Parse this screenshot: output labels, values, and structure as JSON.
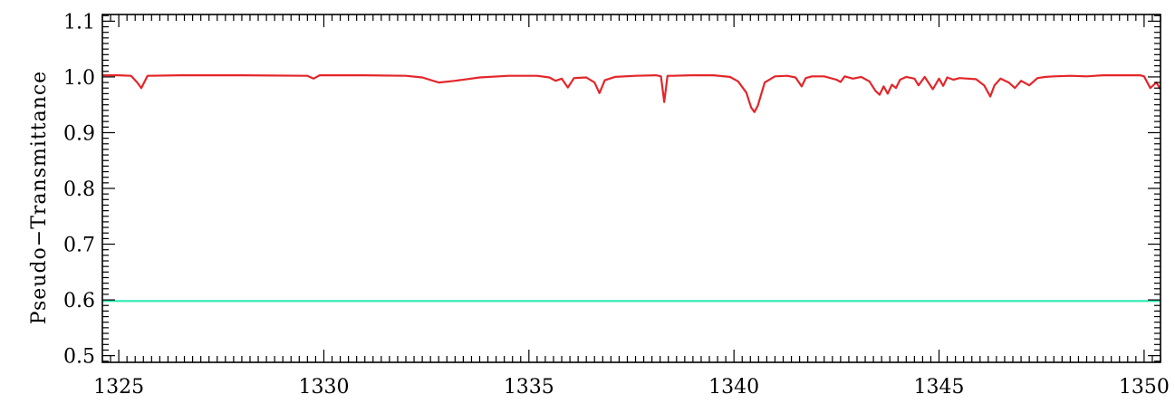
{
  "chart_data": {
    "type": "line",
    "title": "",
    "xlabel": "",
    "ylabel": "Pseudo−Transmittance",
    "xlim": [
      1324.6,
      1350.4
    ],
    "ylim": [
      0.488,
      1.112
    ],
    "x_ticks": [
      1325,
      1330,
      1335,
      1340,
      1345,
      1350
    ],
    "x_tick_labels": [
      "1325",
      "1330",
      "1335",
      "1340",
      "1345",
      "1350"
    ],
    "y_ticks": [
      0.5,
      0.6,
      0.7,
      0.8,
      0.9,
      1.0,
      1.1
    ],
    "y_tick_labels": [
      "0.5",
      "0.6",
      "0.7",
      "0.8",
      "0.9",
      "1.0",
      "1.1"
    ],
    "grid": false,
    "series": [
      {
        "color": "#e3262a",
        "x": [
          1324.6,
          1325.0,
          1325.3,
          1325.45,
          1325.55,
          1325.7,
          1326.5,
          1328.0,
          1329.6,
          1329.75,
          1329.9,
          1331.0,
          1332.0,
          1332.4,
          1332.8,
          1333.2,
          1333.8,
          1334.5,
          1335.2,
          1335.5,
          1335.65,
          1335.8,
          1335.95,
          1336.1,
          1336.4,
          1336.6,
          1336.72,
          1336.85,
          1337.1,
          1337.6,
          1338.1,
          1338.22,
          1338.3,
          1338.38,
          1338.5,
          1339.0,
          1339.5,
          1339.9,
          1340.1,
          1340.3,
          1340.42,
          1340.5,
          1340.58,
          1340.75,
          1341.0,
          1341.3,
          1341.5,
          1341.65,
          1341.75,
          1341.9,
          1342.2,
          1342.5,
          1342.6,
          1342.7,
          1342.9,
          1343.1,
          1343.3,
          1343.45,
          1343.55,
          1343.65,
          1343.75,
          1343.85,
          1343.95,
          1344.05,
          1344.2,
          1344.4,
          1344.5,
          1344.65,
          1344.85,
          1345.0,
          1345.1,
          1345.2,
          1345.35,
          1345.5,
          1345.7,
          1345.9,
          1346.1,
          1346.25,
          1346.35,
          1346.5,
          1346.7,
          1346.85,
          1347.0,
          1347.2,
          1347.4,
          1347.6,
          1347.8,
          1348.2,
          1348.6,
          1348.8,
          1349.0,
          1349.5,
          1349.9,
          1350.0,
          1350.15,
          1350.3,
          1350.4
        ],
        "y": [
          1.003,
          1.003,
          1.002,
          0.99,
          0.98,
          1.002,
          1.003,
          1.003,
          1.002,
          0.997,
          1.003,
          1.003,
          1.002,
          0.999,
          0.99,
          0.993,
          0.999,
          1.002,
          1.002,
          0.999,
          0.993,
          0.997,
          0.981,
          0.998,
          0.999,
          0.99,
          0.971,
          0.994,
          1.0,
          1.002,
          1.003,
          1.001,
          0.955,
          1.002,
          1.002,
          1.003,
          1.003,
          1.0,
          0.992,
          0.972,
          0.945,
          0.937,
          0.948,
          0.99,
          1.001,
          1.002,
          0.999,
          0.983,
          0.998,
          1.001,
          1.001,
          0.995,
          0.991,
          1.001,
          0.997,
          1.0,
          0.992,
          0.975,
          0.968,
          0.983,
          0.97,
          0.986,
          0.98,
          0.995,
          1.0,
          0.997,
          0.985,
          1.0,
          0.978,
          0.997,
          0.984,
          0.999,
          0.995,
          0.998,
          0.997,
          0.996,
          0.985,
          0.965,
          0.985,
          0.997,
          0.99,
          0.98,
          0.993,
          0.985,
          0.998,
          1.0,
          1.001,
          1.002,
          1.001,
          1.002,
          1.003,
          1.003,
          1.003,
          1.001,
          0.98,
          0.99,
          0.978
        ]
      },
      {
        "color": "#2ee8b0",
        "x": [
          1324.6,
          1350.4
        ],
        "y": [
          0.598,
          0.598
        ]
      }
    ]
  }
}
